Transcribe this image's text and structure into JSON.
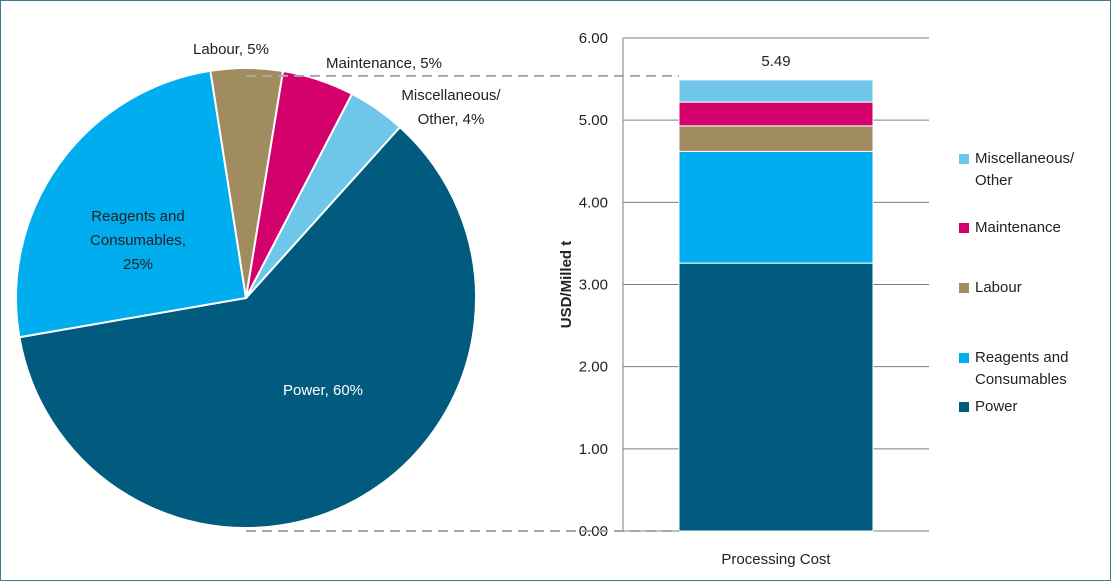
{
  "chart_data": [
    {
      "type": "pie",
      "categories": [
        "Power",
        "Reagents and Consumables",
        "Labour",
        "Maintenance",
        "Miscellaneous/ Other"
      ],
      "values": [
        60,
        25,
        5,
        5,
        4
      ],
      "value_labels": [
        "Power, 60%",
        "Reagents and Consumables, 25%",
        "Labour, 5%",
        "Maintenance, 5%",
        "Miscellaneous/ Other, 4%"
      ],
      "colors": [
        "#005b7f",
        "#00aeef",
        "#a08c5e",
        "#d4006c",
        "#6ec6e8"
      ]
    },
    {
      "type": "stacked_bar",
      "categories": [
        "Processing Cost"
      ],
      "series": [
        {
          "name": "Power",
          "color": "#005b7f",
          "values": [
            3.26
          ]
        },
        {
          "name": "Reagents and Consumables",
          "color": "#00aeef",
          "values": [
            1.36
          ]
        },
        {
          "name": "Labour",
          "color": "#a08c5e",
          "values": [
            0.31
          ]
        },
        {
          "name": "Maintenance",
          "color": "#d4006c",
          "values": [
            0.29
          ]
        },
        {
          "name": "Miscellaneous/ Other",
          "color": "#6ec6e8",
          "values": [
            0.27
          ]
        }
      ],
      "total": 5.49,
      "y_label": "USD/Milled t",
      "ylim": [
        0,
        6
      ],
      "yticks": [
        {
          "value": 0,
          "label": "0.00"
        },
        {
          "value": 1,
          "label": "1.00"
        },
        {
          "value": 2,
          "label": "2.00"
        },
        {
          "value": 3,
          "label": "3.00"
        },
        {
          "value": 4,
          "label": "4.00"
        },
        {
          "value": 5,
          "label": "5.00"
        },
        {
          "value": 6,
          "label": "6.00"
        }
      ],
      "grid": true,
      "legend": "right"
    }
  ]
}
